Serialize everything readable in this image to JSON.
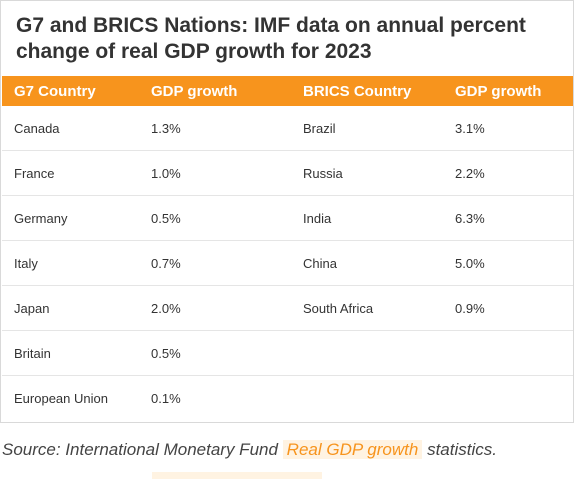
{
  "title": "G7 and BRICS Nations: IMF data on annual percent change of real GDP growth for 2023",
  "chart_data": {
    "type": "table",
    "columns": [
      "G7 Country",
      "GDP growth",
      "BRICS Country",
      "GDP growth"
    ],
    "rows": [
      [
        "Canada",
        "1.3%",
        "Brazil",
        "3.1%"
      ],
      [
        "France",
        "1.0%",
        "Russia",
        "2.2%"
      ],
      [
        "Germany",
        "0.5%",
        "India",
        "6.3%"
      ],
      [
        "Italy",
        "0.7%",
        "China",
        "5.0%"
      ],
      [
        "Japan",
        "2.0%",
        "South Africa",
        "0.9%"
      ],
      [
        "Britain",
        "0.5%",
        "",
        ""
      ],
      [
        "European Union",
        "0.1%",
        "",
        ""
      ]
    ],
    "header_color": "#f7941d"
  },
  "source": {
    "prefix": "Source: International Monetary Fund",
    "link": "Real GDP growth",
    "suffix": "statistics."
  }
}
